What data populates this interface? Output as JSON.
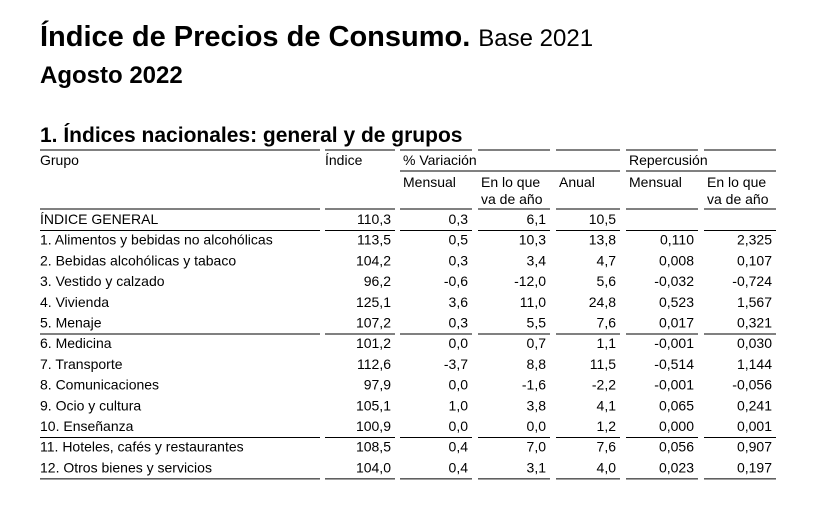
{
  "header": {
    "title": "Índice de Precios de Consumo.",
    "base": "Base 2021",
    "period": "Agosto 2022"
  },
  "section": {
    "title": "1. Índices nacionales: general y de grupos"
  },
  "table": {
    "headers": {
      "group": "Grupo",
      "index": "Índice",
      "variation": "% Variación",
      "impact": "Repercusión",
      "sub": [
        "Mensual",
        [
          "En lo que",
          "va de año"
        ],
        "Anual",
        "Mensual",
        [
          "En lo que",
          "va de año"
        ]
      ]
    },
    "rows": [
      {
        "label": "ÍNDICE GENERAL",
        "values": [
          "110,3",
          "0,3",
          "6,1",
          "10,5"
        ]
      },
      {
        "label": "1. Alimentos y bebidas no alcohólicas",
        "values": [
          "113,5",
          "0,5",
          "10,3",
          "13,8",
          "0,110",
          "2,325"
        ]
      },
      {
        "label": "2. Bebidas alcohólicas y tabaco",
        "values": [
          "104,2",
          "0,3",
          "3,4",
          "4,7",
          "0,008",
          "0,107"
        ]
      },
      {
        "label": "3. Vestido y calzado",
        "values": [
          "96,2",
          "-0,6",
          "-12,0",
          "5,6",
          "-0,032",
          "-0,724"
        ]
      },
      {
        "label": "4. Vivienda",
        "values": [
          "125,1",
          "3,6",
          "11,0",
          "24,8",
          "0,523",
          "1,567"
        ]
      },
      {
        "label": "5. Menaje",
        "values": [
          "107,2",
          "0,3",
          "5,5",
          "7,6",
          "0,017",
          "0,321"
        ]
      },
      {
        "label": "6. Medicina",
        "values": [
          "101,2",
          "0,0",
          "0,7",
          "1,1",
          "-0,001",
          "0,030"
        ]
      },
      {
        "label": "7. Transporte",
        "values": [
          "112,6",
          "-3,7",
          "8,8",
          "11,5",
          "-0,514",
          "1,144"
        ]
      },
      {
        "label": "8. Comunicaciones",
        "values": [
          "97,9",
          "0,0",
          "-1,6",
          "-2,2",
          "-0,001",
          "-0,056"
        ]
      },
      {
        "label": "9. Ocio y cultura",
        "values": [
          "105,1",
          "1,0",
          "3,8",
          "4,1",
          "0,065",
          "0,241"
        ]
      },
      {
        "label": "10. Enseñanza",
        "values": [
          "100,9",
          "0,0",
          "0,0",
          "1,2",
          "0,000",
          "0,001"
        ]
      },
      {
        "label": "11. Hoteles, cafés y restaurantes",
        "values": [
          "108,5",
          "0,4",
          "7,0",
          "7,6",
          "0,056",
          "0,907"
        ]
      },
      {
        "label": "12. Otros bienes y servicios",
        "values": [
          "104,0",
          "0,4",
          "3,1",
          "4,0",
          "0,023",
          "0,197"
        ]
      }
    ]
  }
}
